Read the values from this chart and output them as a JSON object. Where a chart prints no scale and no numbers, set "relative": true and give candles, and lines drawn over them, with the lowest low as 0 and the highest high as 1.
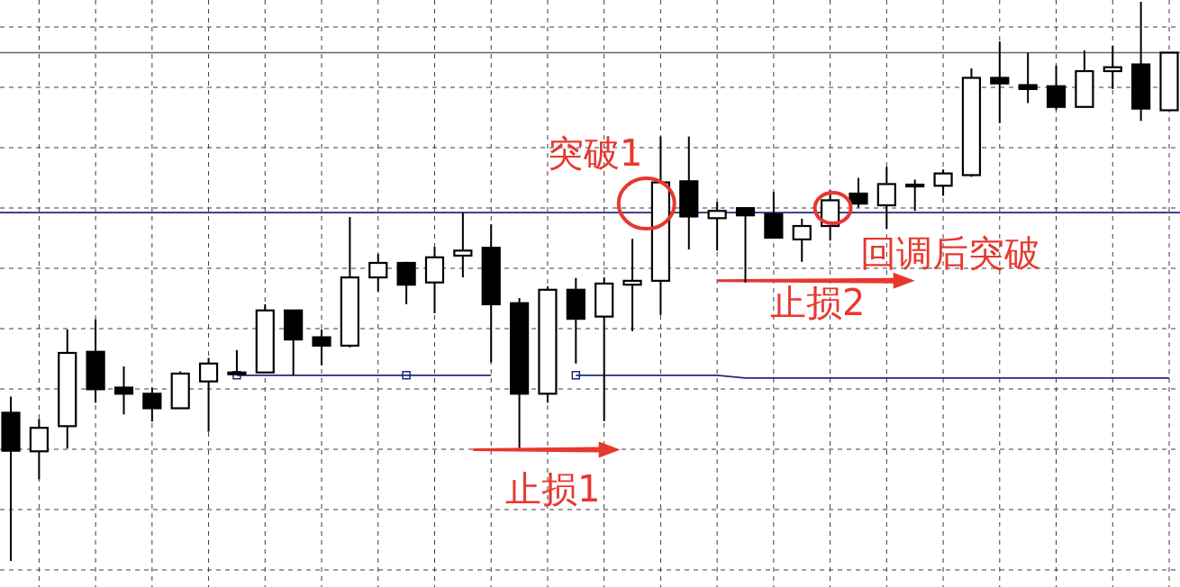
{
  "chart_data": {
    "type": "candlestick",
    "relative": true,
    "categories": [
      null,
      null,
      null,
      null,
      null,
      null,
      null,
      null,
      null,
      null,
      null,
      null,
      null,
      null,
      null,
      null,
      null,
      null,
      null,
      null,
      null,
      null,
      null,
      null,
      null,
      null,
      null,
      null,
      null,
      null,
      null,
      null,
      null,
      null,
      null,
      null,
      null,
      null,
      null,
      null,
      null,
      null
    ],
    "ohlc": [
      [
        0.265,
        0.294,
        0,
        0.197
      ],
      [
        0.196,
        0.254,
        0.146,
        0.238
      ],
      [
        0.241,
        0.414,
        0.201,
        0.372
      ],
      [
        0.374,
        0.432,
        0.283,
        0.307
      ],
      [
        0.31,
        0.348,
        0.262,
        0.299
      ],
      [
        0.299,
        0.31,
        0.249,
        0.273
      ],
      [
        0.273,
        0.339,
        0.273,
        0.335
      ],
      [
        0.321,
        0.363,
        0.231,
        0.353
      ],
      [
        0.337,
        0.377,
        0.332,
        0.334
      ],
      [
        0.337,
        0.459,
        0.337,
        0.448
      ],
      [
        0.448,
        0.449,
        0.332,
        0.396
      ],
      [
        0.4,
        0.414,
        0.35,
        0.385
      ],
      [
        0.385,
        0.615,
        0.382,
        0.507
      ],
      [
        0.507,
        0.549,
        0.482,
        0.533
      ],
      [
        0.533,
        0.535,
        0.459,
        0.494
      ],
      [
        0.498,
        0.562,
        0.443,
        0.543
      ],
      [
        0.546,
        0.623,
        0.507,
        0.555
      ],
      [
        0.56,
        0.602,
        0.355,
        0.459
      ],
      [
        0.461,
        0.47,
        0.202,
        0.299
      ],
      [
        0.299,
        0.491,
        0.283,
        0.485
      ],
      [
        0.485,
        0.506,
        0.353,
        0.433
      ],
      [
        0.437,
        0.507,
        0.25,
        0.496
      ],
      [
        0.494,
        0.576,
        0.411,
        0.501
      ],
      [
        0.501,
        0.759,
        0.44,
        0.677
      ],
      [
        0.679,
        0.759,
        0.557,
        0.616
      ],
      [
        0.613,
        0.642,
        0.555,
        0.626
      ],
      [
        0.631,
        0.632,
        0.498,
        0.618
      ],
      [
        0.62,
        0.66,
        0.578,
        0.578
      ],
      [
        0.575,
        0.612,
        0.535,
        0.599
      ],
      [
        0.599,
        0.663,
        0.573,
        0.645
      ],
      [
        0.657,
        0.685,
        0.632,
        0.639
      ],
      [
        0.636,
        0.705,
        0.594,
        0.674
      ],
      [
        0.673,
        0.682,
        0.626,
        0.673
      ],
      [
        0.671,
        0.7,
        0.653,
        0.693
      ],
      [
        0.69,
        0.881,
        0.687,
        0.864
      ],
      [
        0.864,
        0.929,
        0.783,
        0.854
      ],
      [
        0.851,
        0.909,
        0.819,
        0.844
      ],
      [
        0.849,
        0.886,
        0.807,
        0.812
      ],
      [
        0.812,
        0.913,
        0.812,
        0.876
      ],
      [
        0.876,
        0.921,
        0.844,
        0.883
      ],
      [
        0.888,
        1,
        0.787,
        0.809
      ],
      [
        0.806,
        0.909,
        0.806,
        0.909
      ]
    ],
    "colors": [
      "#000000",
      "#ffffff",
      "#ffffff",
      "#000000",
      "#000000",
      "#000000",
      "#ffffff",
      "#ffffff",
      "#000000",
      "#ffffff",
      "#000000",
      "#000000",
      "#ffffff",
      "#ffffff",
      "#000000",
      "#ffffff",
      "#ffffff",
      "#000000",
      "#000000",
      "#ffffff",
      "#000000",
      "#ffffff",
      "#ffffff",
      "#ffffff",
      "#000000",
      "#ffffff",
      "#000000",
      "#000000",
      "#ffffff",
      "#ffffff",
      "#000000",
      "#ffffff",
      "#ffffff",
      "#ffffff",
      "#ffffff",
      "#000000",
      "#000000",
      "#000000",
      "#ffffff",
      "#ffffff",
      "#000000",
      "#ffffff"
    ],
    "grid": true,
    "ref_lines": [
      {
        "axis": "y",
        "value": 0.909,
        "color": "#5f6670"
      },
      {
        "axis": "y",
        "value": 0.623,
        "color": "#1f2a7a"
      }
    ],
    "series": [
      {
        "type": "line",
        "color": "#1f2a7a",
        "values": [
          null,
          null,
          null,
          null,
          null,
          null,
          null,
          null,
          0.332,
          0.332,
          0.332,
          0.332,
          0.332,
          0.332,
          0.332,
          0.332,
          0.332,
          0.332,
          null,
          null,
          0.332,
          0.332,
          0.332,
          0.332,
          0.332,
          0.332,
          0.327,
          0.327,
          0.327,
          0.327,
          0.327,
          0.327,
          0.327,
          0.327,
          0.327,
          0.327,
          0.327,
          0.327,
          0.327,
          0.327,
          0.327,
          0.327
        ]
      }
    ],
    "annotations": [
      "突破1",
      "回调后突破",
      "止损2",
      "止损1"
    ]
  }
}
